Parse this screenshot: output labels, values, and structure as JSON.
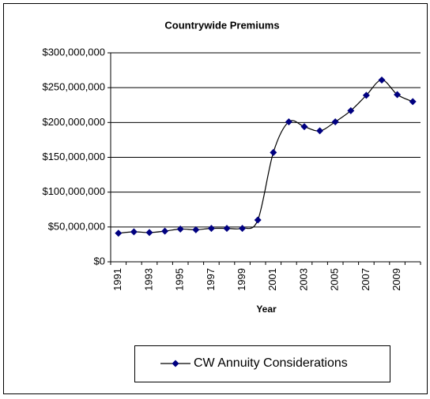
{
  "chart_data": {
    "type": "line",
    "title": "Countrywide Premiums",
    "x_label": "Year",
    "categories": [
      "1991",
      null,
      "1993",
      null,
      "1995",
      null,
      "1997",
      null,
      "1999",
      null,
      "2001",
      null,
      "2003",
      null,
      "2005",
      null,
      "2007",
      null,
      "2009",
      null
    ],
    "series": [
      {
        "name": "CW Annuity Considerations",
        "color": "#000080",
        "values": [
          41000000,
          43000000,
          42000000,
          44000000,
          47000000,
          46000000,
          48000000,
          48000000,
          48000000,
          60000000,
          157000000,
          201000000,
          194000000,
          188000000,
          201000000,
          217000000,
          239000000,
          261000000,
          240000000,
          230000000
        ]
      }
    ],
    "ylim": [
      0,
      300000000
    ],
    "yticks": [
      {
        "value": 0,
        "label": "$0"
      },
      {
        "value": 50000000,
        "label": "$50,000,000"
      },
      {
        "value": 100000000,
        "label": "$100,000,000"
      },
      {
        "value": 150000000,
        "label": "$150,000,000"
      },
      {
        "value": 200000000,
        "label": "$200,000,000"
      },
      {
        "value": 250000000,
        "label": "$250,000,000"
      },
      {
        "value": 300000000,
        "label": "$300,000,000"
      }
    ],
    "grid": true,
    "legend": "bottom"
  }
}
